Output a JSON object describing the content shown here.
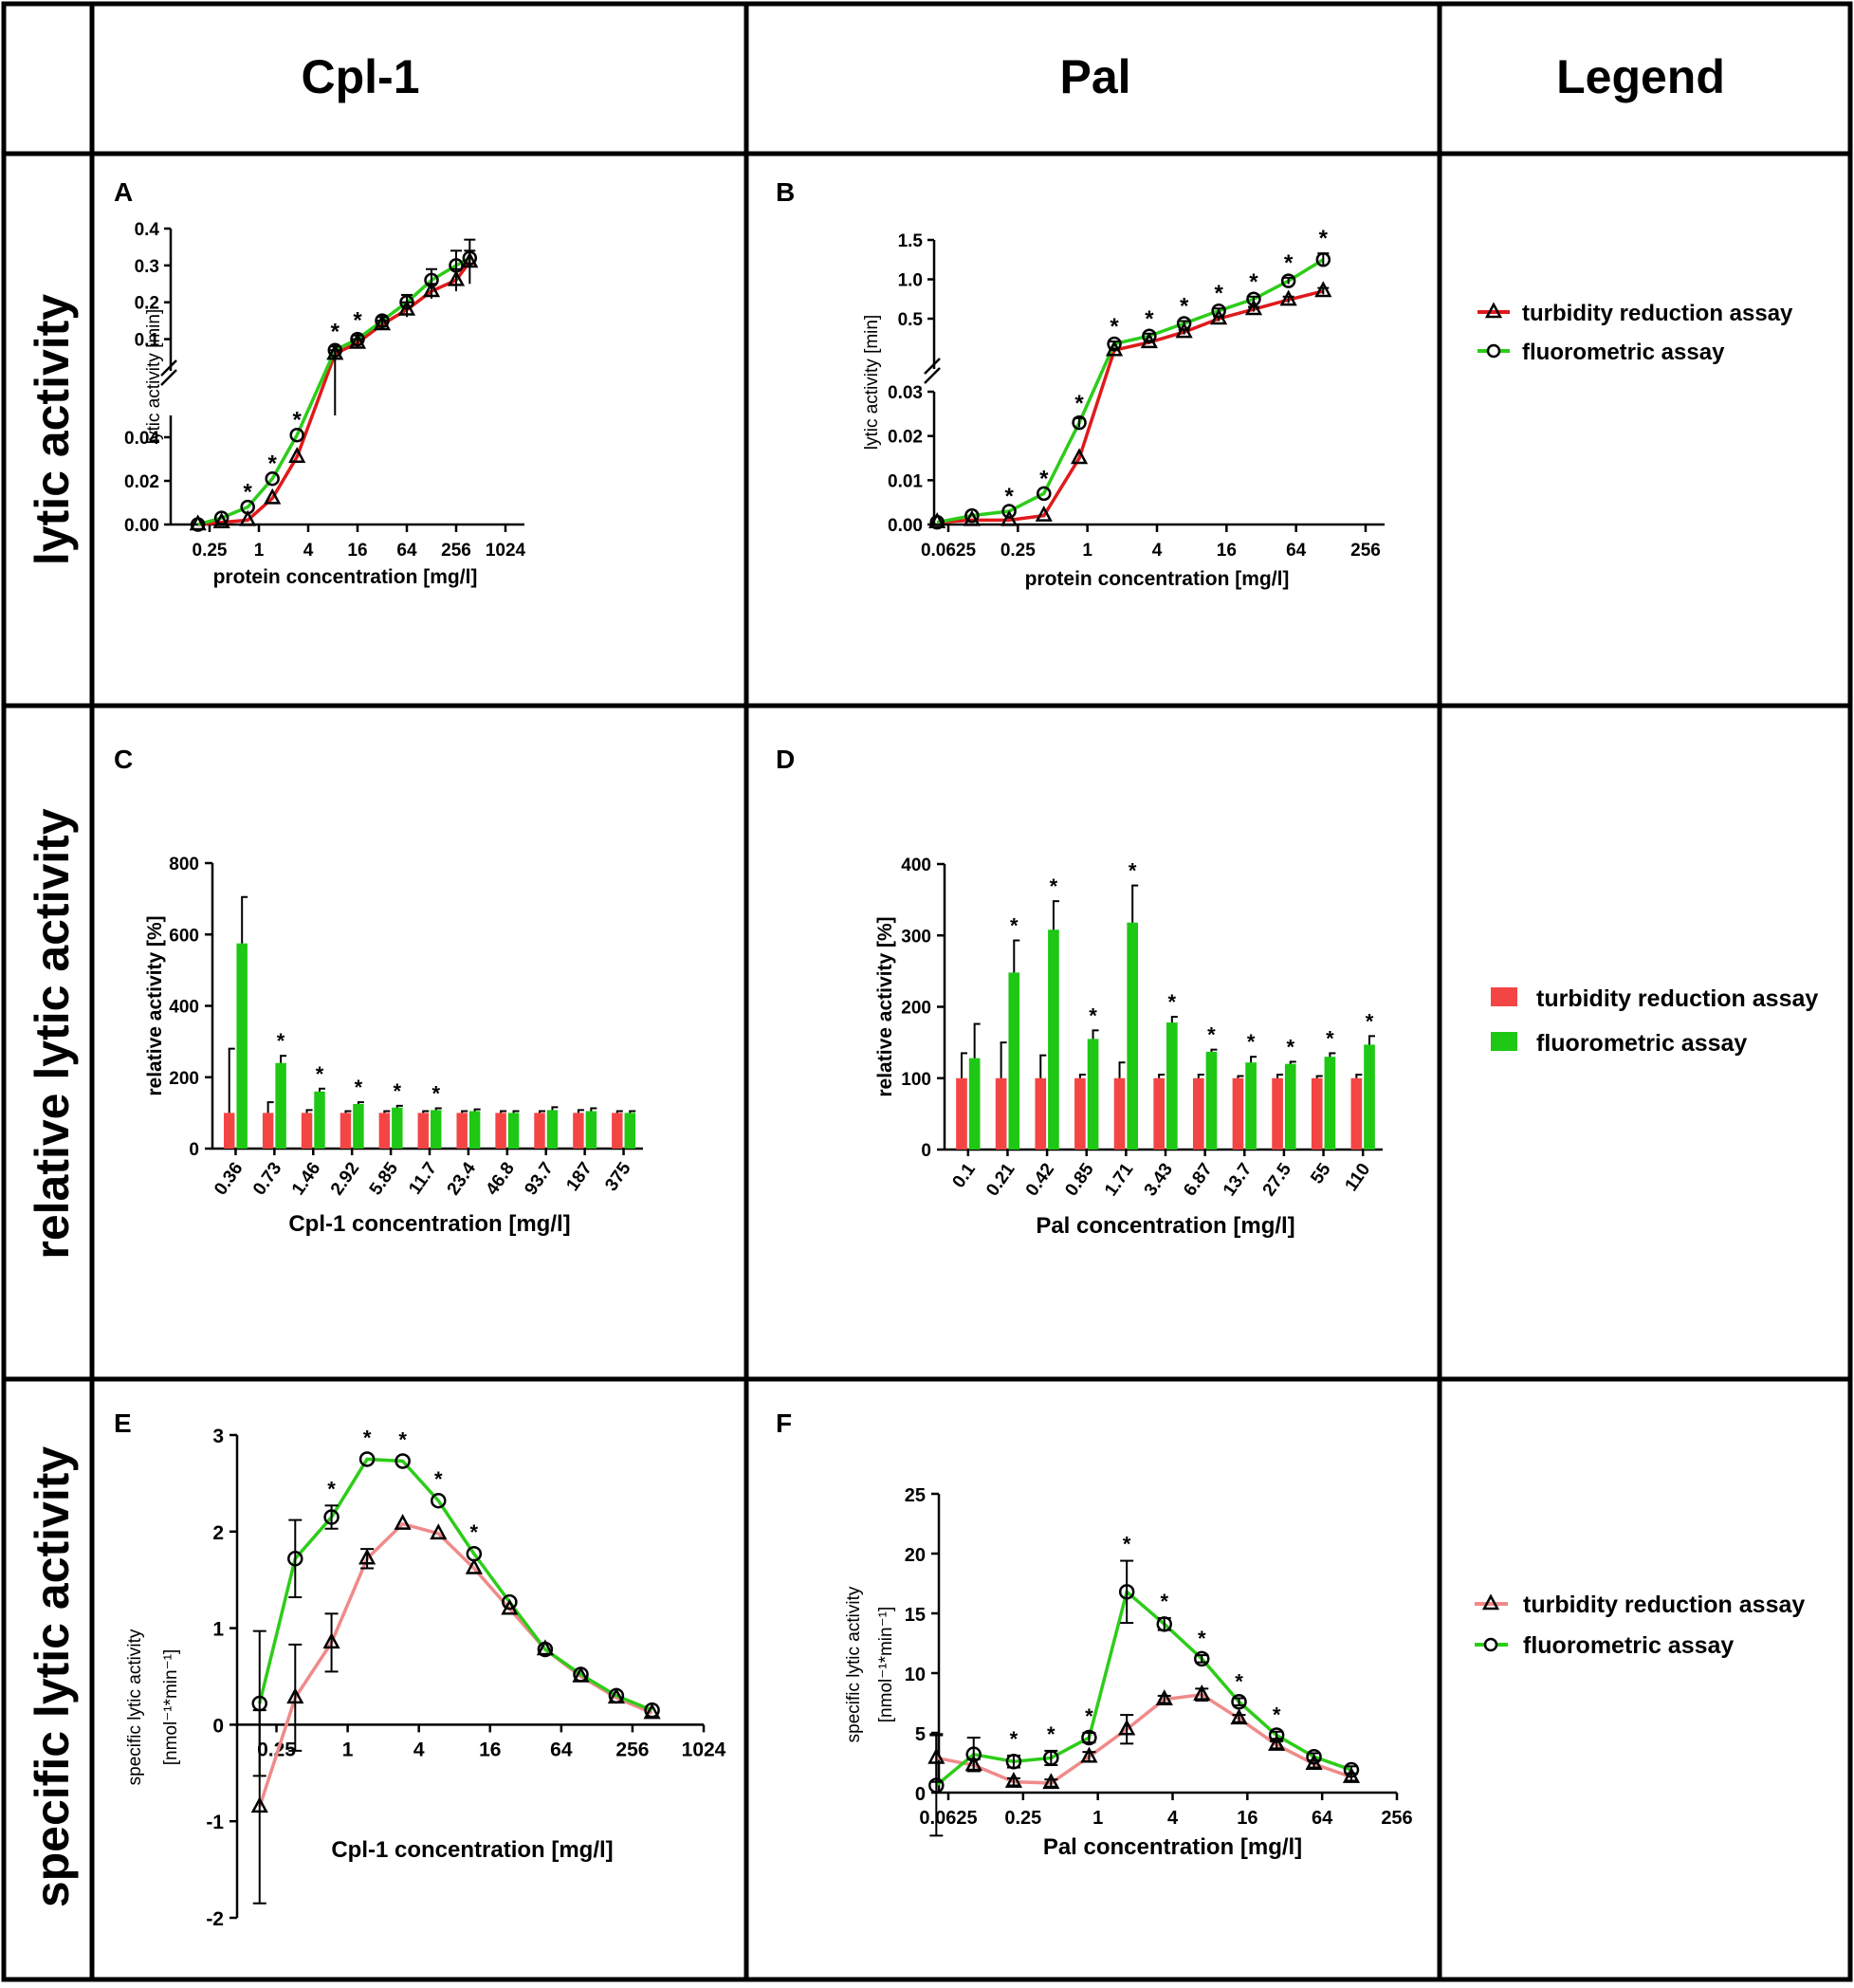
{
  "headers": {
    "col1": "Cpl-1",
    "col2": "Pal",
    "col3": "Legend"
  },
  "rows": {
    "r1": "lytic activity",
    "r2": "relative lytic activity",
    "r3": "specific lytic activity"
  },
  "legends": {
    "row1": {
      "turbidity": "turbidity reduction assay",
      "fluorometric": "fluorometric assay"
    },
    "row2": {
      "turbidity": "turbidity reduction assay",
      "fluorometric": "fluorometric assay"
    },
    "row3": {
      "turbidity": "turbidity reduction assay",
      "fluorometric": "fluorometric assay"
    }
  },
  "colors": {
    "turbidity_line": "#e0191b",
    "fluorometric_line": "#2dcc19",
    "turbidity_bar": "#f44545",
    "fluorometric_bar": "#1ec814",
    "turbidity_specific": "#f08a8a"
  },
  "chart_data": [
    {
      "id": "A",
      "type": "line",
      "scale_x": "log2",
      "xlabel": "protein concentration [mg/l]",
      "ylabel": "lytic activity [min-1]",
      "xticks": [
        0.25,
        1,
        4,
        16,
        64,
        256,
        1024
      ],
      "xtick_labels": [
        "0.25",
        "1",
        "4",
        "16",
        "64",
        "256",
        "1024"
      ],
      "broken_y": true,
      "yticks_lower": [
        0.0,
        0.02,
        0.04
      ],
      "yticks_lower_labels": [
        "0.00",
        "0.02",
        "0.04"
      ],
      "ylim_lower": [
        0,
        0.05
      ],
      "yticks_upper": [
        0.1,
        0.2,
        0.3,
        0.4
      ],
      "yticks_upper_labels": [
        "0.1",
        "0.2",
        "0.3",
        "0.4"
      ],
      "ylim_upper": [
        0.05,
        0.4
      ],
      "series": [
        {
          "name": "turbidity reduction assay",
          "marker": "triangle",
          "x": [
            0.18,
            0.35,
            0.73,
            1.46,
            2.92,
            8.5,
            16,
            32,
            64,
            128,
            256,
            375
          ],
          "y": [
            0.0,
            0.001,
            0.002,
            0.012,
            0.031,
            0.06,
            0.09,
            0.14,
            0.18,
            0.23,
            0.26,
            0.31
          ],
          "err": [
            0,
            0,
            0,
            0,
            0,
            0.01,
            0.01,
            0.01,
            0.02,
            0.02,
            0.03,
            0.06
          ]
        },
        {
          "name": "fluorometric assay",
          "marker": "circle",
          "x": [
            0.18,
            0.35,
            0.73,
            1.46,
            2.92,
            8.5,
            16,
            32,
            64,
            128,
            256,
            375
          ],
          "y": [
            0.0,
            0.003,
            0.008,
            0.021,
            0.041,
            0.07,
            0.1,
            0.15,
            0.2,
            0.26,
            0.3,
            0.32
          ],
          "err": [
            0,
            0,
            0,
            0,
            0,
            0.01,
            0.01,
            0.01,
            0.02,
            0.03,
            0.04,
            0.02
          ]
        }
      ],
      "stars_x": [
        0.73,
        1.46,
        2.92,
        8.5,
        16
      ]
    },
    {
      "id": "B",
      "type": "line",
      "scale_x": "log2",
      "xlabel": "protein concentration [mg/l]",
      "ylabel": "lytic activity [min-1]",
      "xticks": [
        0.0625,
        0.25,
        1,
        4,
        16,
        64,
        256
      ],
      "xtick_labels": [
        "0.0625",
        "0.25",
        "1",
        "4",
        "16",
        "64",
        "256"
      ],
      "broken_y": true,
      "yticks_lower": [
        0.0,
        0.01,
        0.02,
        0.03
      ],
      "yticks_lower_labels": [
        "0.00",
        "0.01",
        "0.02",
        "0.03"
      ],
      "ylim_lower": [
        0,
        0.03
      ],
      "yticks_upper": [
        0.5,
        1.0,
        1.5
      ],
      "yticks_upper_labels": [
        "0.5",
        "1.0",
        "1.5"
      ],
      "ylim_upper": [
        0.03,
        1.5
      ],
      "series": [
        {
          "name": "turbidity reduction assay",
          "marker": "triangle",
          "x": [
            0.05,
            0.1,
            0.21,
            0.42,
            0.85,
            1.71,
            3.43,
            6.87,
            13.7,
            27.5,
            55,
            110
          ],
          "y": [
            0.0005,
            0.001,
            0.001,
            0.002,
            0.015,
            0.1,
            0.2,
            0.33,
            0.5,
            0.62,
            0.74,
            0.85
          ],
          "err": [
            0,
            0,
            0,
            0,
            0,
            0.02,
            0.02,
            0.03,
            0.03,
            0.03,
            0.04,
            0.04
          ]
        },
        {
          "name": "fluorometric assay",
          "marker": "circle",
          "x": [
            0.05,
            0.1,
            0.21,
            0.42,
            0.85,
            1.71,
            3.43,
            6.87,
            13.7,
            27.5,
            55,
            110
          ],
          "y": [
            0.0005,
            0.002,
            0.003,
            0.007,
            0.023,
            0.18,
            0.28,
            0.44,
            0.6,
            0.75,
            0.98,
            1.25
          ],
          "err": [
            0,
            0,
            0,
            0,
            0.001,
            0.03,
            0.03,
            0.03,
            0.03,
            0.03,
            0.04,
            0.08
          ]
        }
      ],
      "stars_x": [
        0.21,
        0.42,
        0.85,
        1.71,
        3.43,
        6.87,
        13.7,
        27.5,
        55,
        110
      ]
    },
    {
      "id": "C",
      "type": "bar",
      "xlabel": "Cpl-1 concentration [mg/l]",
      "ylabel": "relative activity [%]",
      "ylim": [
        0,
        800
      ],
      "yticks": [
        0,
        200,
        400,
        600,
        800
      ],
      "categories": [
        "0.36",
        "0.73",
        "1.46",
        "2.92",
        "5.85",
        "11.7",
        "23.4",
        "46.8",
        "93.7",
        "187",
        "375"
      ],
      "series": [
        {
          "name": "turbidity reduction assay",
          "values": [
            100,
            100,
            100,
            100,
            100,
            100,
            100,
            100,
            100,
            100,
            100
          ],
          "err": [
            180,
            30,
            8,
            5,
            5,
            5,
            5,
            5,
            5,
            8,
            5
          ]
        },
        {
          "name": "fluorometric assay",
          "values": [
            575,
            240,
            160,
            125,
            115,
            108,
            105,
            100,
            108,
            105,
            100
          ],
          "err": [
            130,
            20,
            8,
            5,
            5,
            5,
            5,
            5,
            8,
            8,
            5
          ]
        }
      ],
      "stars": [
        false,
        true,
        true,
        true,
        true,
        true,
        false,
        false,
        false,
        false,
        false
      ]
    },
    {
      "id": "D",
      "type": "bar",
      "xlabel": "Pal concentration [mg/l]",
      "ylabel": "relative activity [%]",
      "ylim": [
        0,
        400
      ],
      "yticks": [
        0,
        100,
        200,
        300,
        400
      ],
      "categories": [
        "0.1",
        "0.21",
        "0.42",
        "0.85",
        "1.71",
        "3.43",
        "6.87",
        "13.7",
        "27.5",
        "55",
        "110"
      ],
      "series": [
        {
          "name": "turbidity reduction assay",
          "values": [
            100,
            100,
            100,
            100,
            100,
            100,
            100,
            100,
            100,
            100,
            100
          ],
          "err": [
            35,
            50,
            32,
            5,
            22,
            5,
            5,
            3,
            5,
            3,
            5
          ]
        },
        {
          "name": "fluorometric assay",
          "values": [
            128,
            248,
            308,
            155,
            318,
            178,
            137,
            122,
            120,
            130,
            147
          ],
          "err": [
            48,
            45,
            40,
            12,
            52,
            8,
            3,
            8,
            3,
            5,
            12
          ]
        }
      ],
      "stars": [
        false,
        true,
        true,
        true,
        true,
        true,
        true,
        true,
        true,
        true,
        true
      ]
    },
    {
      "id": "E",
      "type": "line",
      "scale_x": "log2",
      "xlabel": "Cpl-1 concentration [mg/l]",
      "ylabel": "specific lytic activity [nmol-1*min-1]",
      "xticks": [
        0.25,
        1,
        4,
        16,
        64,
        256,
        1024
      ],
      "xtick_labels": [
        "0.25",
        "1",
        "4",
        "16",
        "64",
        "256",
        "1024"
      ],
      "ylim": [
        -2,
        3
      ],
      "yticks": [
        -2,
        -1,
        0,
        1,
        2,
        3
      ],
      "series": [
        {
          "name": "turbidity reduction assay",
          "marker": "triangle",
          "x": [
            0.18,
            0.36,
            0.73,
            1.46,
            2.92,
            5.85,
            11.7,
            23.4,
            46.8,
            93.7,
            187,
            375
          ],
          "y": [
            -0.85,
            0.28,
            0.85,
            1.72,
            2.08,
            1.98,
            1.62,
            1.2,
            0.78,
            0.5,
            0.28,
            0.12
          ],
          "err": [
            1.0,
            0.55,
            0.3,
            0.1,
            0.05,
            0.05,
            0.05,
            0.05,
            0.05,
            0.05,
            0.05,
            0.05
          ]
        },
        {
          "name": "fluorometric assay",
          "marker": "circle",
          "x": [
            0.18,
            0.36,
            0.73,
            1.46,
            2.92,
            5.85,
            11.7,
            23.4,
            46.8,
            93.7,
            187,
            375
          ],
          "y": [
            0.22,
            1.72,
            2.15,
            2.75,
            2.73,
            2.32,
            1.77,
            1.27,
            0.78,
            0.52,
            0.3,
            0.15
          ],
          "err": [
            0.75,
            0.4,
            0.12,
            0.05,
            0.05,
            0.05,
            0.05,
            0.05,
            0.05,
            0.05,
            0.05,
            0.05
          ]
        }
      ],
      "stars_x": [
        0.73,
        1.46,
        2.92,
        5.85,
        11.7
      ]
    },
    {
      "id": "F",
      "type": "line",
      "scale_x": "log2",
      "xlabel": "Pal concentration [mg/l]",
      "ylabel": "specific lytic activity [nmol-1*min-1]",
      "xticks": [
        0.0625,
        0.25,
        1,
        4,
        16,
        64,
        256
      ],
      "xtick_labels": [
        "0.0625",
        "0.25",
        "1",
        "4",
        "16",
        "64",
        "256"
      ],
      "ylim": [
        0,
        25
      ],
      "yticks": [
        0,
        5,
        10,
        15,
        20,
        25
      ],
      "series": [
        {
          "name": "turbidity reduction assay",
          "marker": "triangle",
          "x": [
            0.05,
            0.1,
            0.21,
            0.42,
            0.85,
            1.71,
            3.43,
            6.87,
            13.7,
            27.5,
            55,
            110
          ],
          "y": [
            2.9,
            2.3,
            0.9,
            0.8,
            3.0,
            5.3,
            7.8,
            8.2,
            6.2,
            4.0,
            2.4,
            1.3
          ],
          "err": [
            2.0,
            0.5,
            0.3,
            0.3,
            0.4,
            1.2,
            0.3,
            0.5,
            0.3,
            0.3,
            0.3,
            0.3
          ]
        },
        {
          "name": "fluorometric assay",
          "marker": "circle",
          "x": [
            0.05,
            0.1,
            0.21,
            0.42,
            0.85,
            1.71,
            3.43,
            6.87,
            13.7,
            27.5,
            55,
            110
          ],
          "y": [
            0.6,
            3.2,
            2.6,
            2.9,
            4.6,
            16.8,
            14.1,
            11.2,
            7.6,
            4.8,
            3.0,
            1.9
          ],
          "err": [
            4.2,
            1.4,
            0.5,
            0.6,
            0.4,
            2.6,
            0.5,
            0.3,
            0.3,
            0.3,
            0.3,
            0.3
          ]
        }
      ],
      "stars_x": [
        0.21,
        0.42,
        0.85,
        1.71,
        3.43,
        6.87,
        13.7,
        27.5
      ]
    }
  ]
}
